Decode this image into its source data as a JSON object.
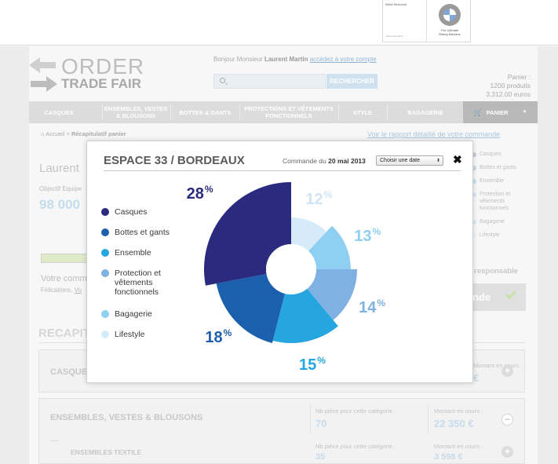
{
  "header": {
    "bmw_card": {
      "small_title": "BMW Motorrad",
      "small_text": "www.motorrad.fr",
      "tagline_line1": "The Ultimate",
      "tagline_line2": "Riding Machine"
    },
    "logo_line1": "ORDER",
    "logo_line2": "TRADE FAIR",
    "greeting_prefix": "Bonjour Monsieur",
    "user_name": "Laurent Martin",
    "account_link": "accédez à votre compte",
    "search_placeholder": "",
    "search_button": "RECHERCHER",
    "cart_label": "Panier :",
    "cart_products": "1200 produits",
    "cart_total": "3,312.00 euros"
  },
  "nav": {
    "items": [
      "CASQUES",
      "ENSEMBLES, VESTES & BLOUSONS",
      "BOTTES & GANTS",
      "PROTECTIONS ET VÊTEMENTS FONCTIONNELS",
      "STYLE",
      "BAGAGERIE"
    ],
    "panier": "PANIER"
  },
  "breadcrumb": {
    "home": "Accueil",
    "separator": ">",
    "current": "Récapitulatif panier"
  },
  "report_link": "Voir le rapport détaillé de votre commande",
  "background": {
    "name": "Laurent",
    "objective_label": "Objectif Equipe",
    "objective_value": "98 000",
    "votre": "Votre comm",
    "felicitations": "Félications,",
    "felicitations_link": "Vo",
    "recap_title": "RECAPIT",
    "right_list": [
      "Casques",
      "Bottes et gants",
      "Ensemble",
      "Protection et vêtements fonctionnels",
      "Bagagerie",
      "Lifestyle"
    ],
    "responsable": "responsable",
    "commande_btn": "nde",
    "blocks": [
      {
        "title": "CASQUE",
        "montant_label": "Montant en cours :",
        "value": "€"
      },
      {
        "title": "ENSEMBLES, VESTES & BLOUSONS",
        "pieces_label": "Nb pièce pour cette catégorie :",
        "pieces_value": "70",
        "montant_label": "Montant en cours :",
        "montant_value": "22 350 €"
      },
      {
        "title": "ENSEMBLES TEXTILE",
        "pieces_label": "Nb pièce pour cette catégorie :",
        "pieces_value": "35",
        "montant_label": "Montant en cours :",
        "montant_value": "3 598 €"
      }
    ]
  },
  "modal": {
    "title": "ESPACE 33 / BORDEAUX",
    "order_prefix": "Commande du",
    "order_date": "20 mai 2013",
    "select_value": "Choisir une date",
    "close_icon": "close-icon",
    "legend": [
      {
        "label": "Casques",
        "color": "#2a2a7f"
      },
      {
        "label": "Bottes et gants",
        "color": "#1c5fad"
      },
      {
        "label": "Ensemble",
        "color": "#26a6e0"
      },
      {
        "label": "Protection et vêtements fonctionnels",
        "color": "#7fb2e3"
      },
      {
        "label": "Bagagerie",
        "color": "#8fcff1"
      },
      {
        "label": "Lifestyle",
        "color": "#d6ebf9"
      }
    ]
  },
  "chart_data": {
    "type": "pie",
    "title": "",
    "categories": [
      "Casques",
      "Bottes et gants",
      "Ensemble",
      "Protection et vêtements fonctionnels",
      "Bagagerie",
      "Lifestyle"
    ],
    "values": [
      28,
      18,
      15,
      14,
      13,
      12
    ],
    "labels": [
      "28%",
      "18%",
      "15%",
      "14%",
      "13%",
      "12%"
    ],
    "colors": [
      "#2a2a7f",
      "#1c5fad",
      "#26a6e0",
      "#7fb2e3",
      "#8fcff1",
      "#d6ebf9"
    ],
    "label_colors": [
      "#2a2a7f",
      "#1c5fad",
      "#26a6e0",
      "#7fb2e3",
      "#8fcff1",
      "#cfe5f5"
    ],
    "donut": true,
    "legend_position": "left"
  }
}
